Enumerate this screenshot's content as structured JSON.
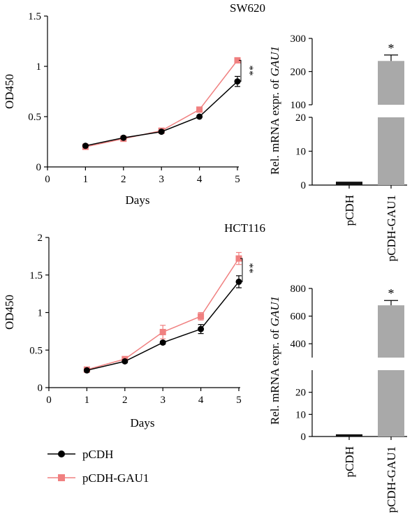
{
  "colors": {
    "pcdh": "#000000",
    "gau1": "#F08080",
    "bar_ctrl": "#111111",
    "bar_gau1": "#A9A9A9"
  },
  "legend": {
    "pcdh": "pCDH",
    "gau1": "pCDH-GAU1"
  },
  "chart_data": [
    {
      "type": "line",
      "title": "SW620",
      "xlabel": "Days",
      "ylabel": "OD450",
      "x": [
        1,
        2,
        3,
        4,
        5
      ],
      "xticks": [
        "0",
        "1",
        "2",
        "3",
        "4",
        "5"
      ],
      "yticks": [
        "0",
        "0.5",
        "1",
        "1.5"
      ],
      "xlim": [
        0,
        5
      ],
      "ylim": [
        0,
        1.5
      ],
      "series": [
        {
          "name": "pCDH",
          "values": [
            0.21,
            0.29,
            0.35,
            0.5,
            0.85
          ],
          "err": [
            0.01,
            0.01,
            0.01,
            0.01,
            0.05
          ]
        },
        {
          "name": "pCDH-GAU1",
          "values": [
            0.2,
            0.28,
            0.36,
            0.57,
            1.06
          ],
          "err": [
            0.01,
            0.01,
            0.01,
            0.01,
            0.02
          ]
        }
      ],
      "annotation": "**"
    },
    {
      "type": "bar",
      "ylabel": "Rel. mRNA expr. of ",
      "ylabel_gene": "GAU1",
      "categories": [
        "pCDH",
        "pCDH-GAU1"
      ],
      "values": [
        1,
        232
      ],
      "err": [
        0,
        18
      ],
      "axis_break": {
        "lower": [
          0,
          20
        ],
        "upper": [
          100,
          300
        ]
      },
      "yticks_lower": [
        "0",
        "10",
        "20"
      ],
      "yticks_upper": [
        "100",
        "200",
        "300"
      ],
      "annotation": "*"
    },
    {
      "type": "line",
      "title": "HCT116",
      "xlabel": "Days",
      "ylabel": "OD450",
      "x": [
        1,
        2,
        3,
        4,
        5
      ],
      "xticks": [
        "0",
        "1",
        "2",
        "3",
        "4",
        "5"
      ],
      "yticks": [
        "0",
        "0.5",
        "1",
        "1.5",
        "2"
      ],
      "xlim": [
        0,
        5
      ],
      "ylim": [
        0,
        2
      ],
      "series": [
        {
          "name": "pCDH",
          "values": [
            0.23,
            0.35,
            0.6,
            0.78,
            1.41
          ],
          "err": [
            0.01,
            0.02,
            0.02,
            0.06,
            0.08
          ]
        },
        {
          "name": "pCDH-GAU1",
          "values": [
            0.24,
            0.38,
            0.74,
            0.95,
            1.72
          ],
          "err": [
            0.02,
            0.02,
            0.09,
            0.05,
            0.08
          ]
        }
      ],
      "annotation": "**"
    },
    {
      "type": "bar",
      "ylabel": "Rel. mRNA expr. of ",
      "ylabel_gene": "GAU1",
      "categories": [
        "pCDH",
        "pCDH-GAU1"
      ],
      "values": [
        1,
        678
      ],
      "err": [
        0,
        35
      ],
      "axis_break": {
        "lower": [
          0,
          30
        ],
        "upper": [
          300,
          800
        ]
      },
      "yticks_lower": [
        "0",
        "10",
        "20"
      ],
      "yticks_upper": [
        "400",
        "600",
        "800"
      ],
      "annotation": "*"
    }
  ]
}
